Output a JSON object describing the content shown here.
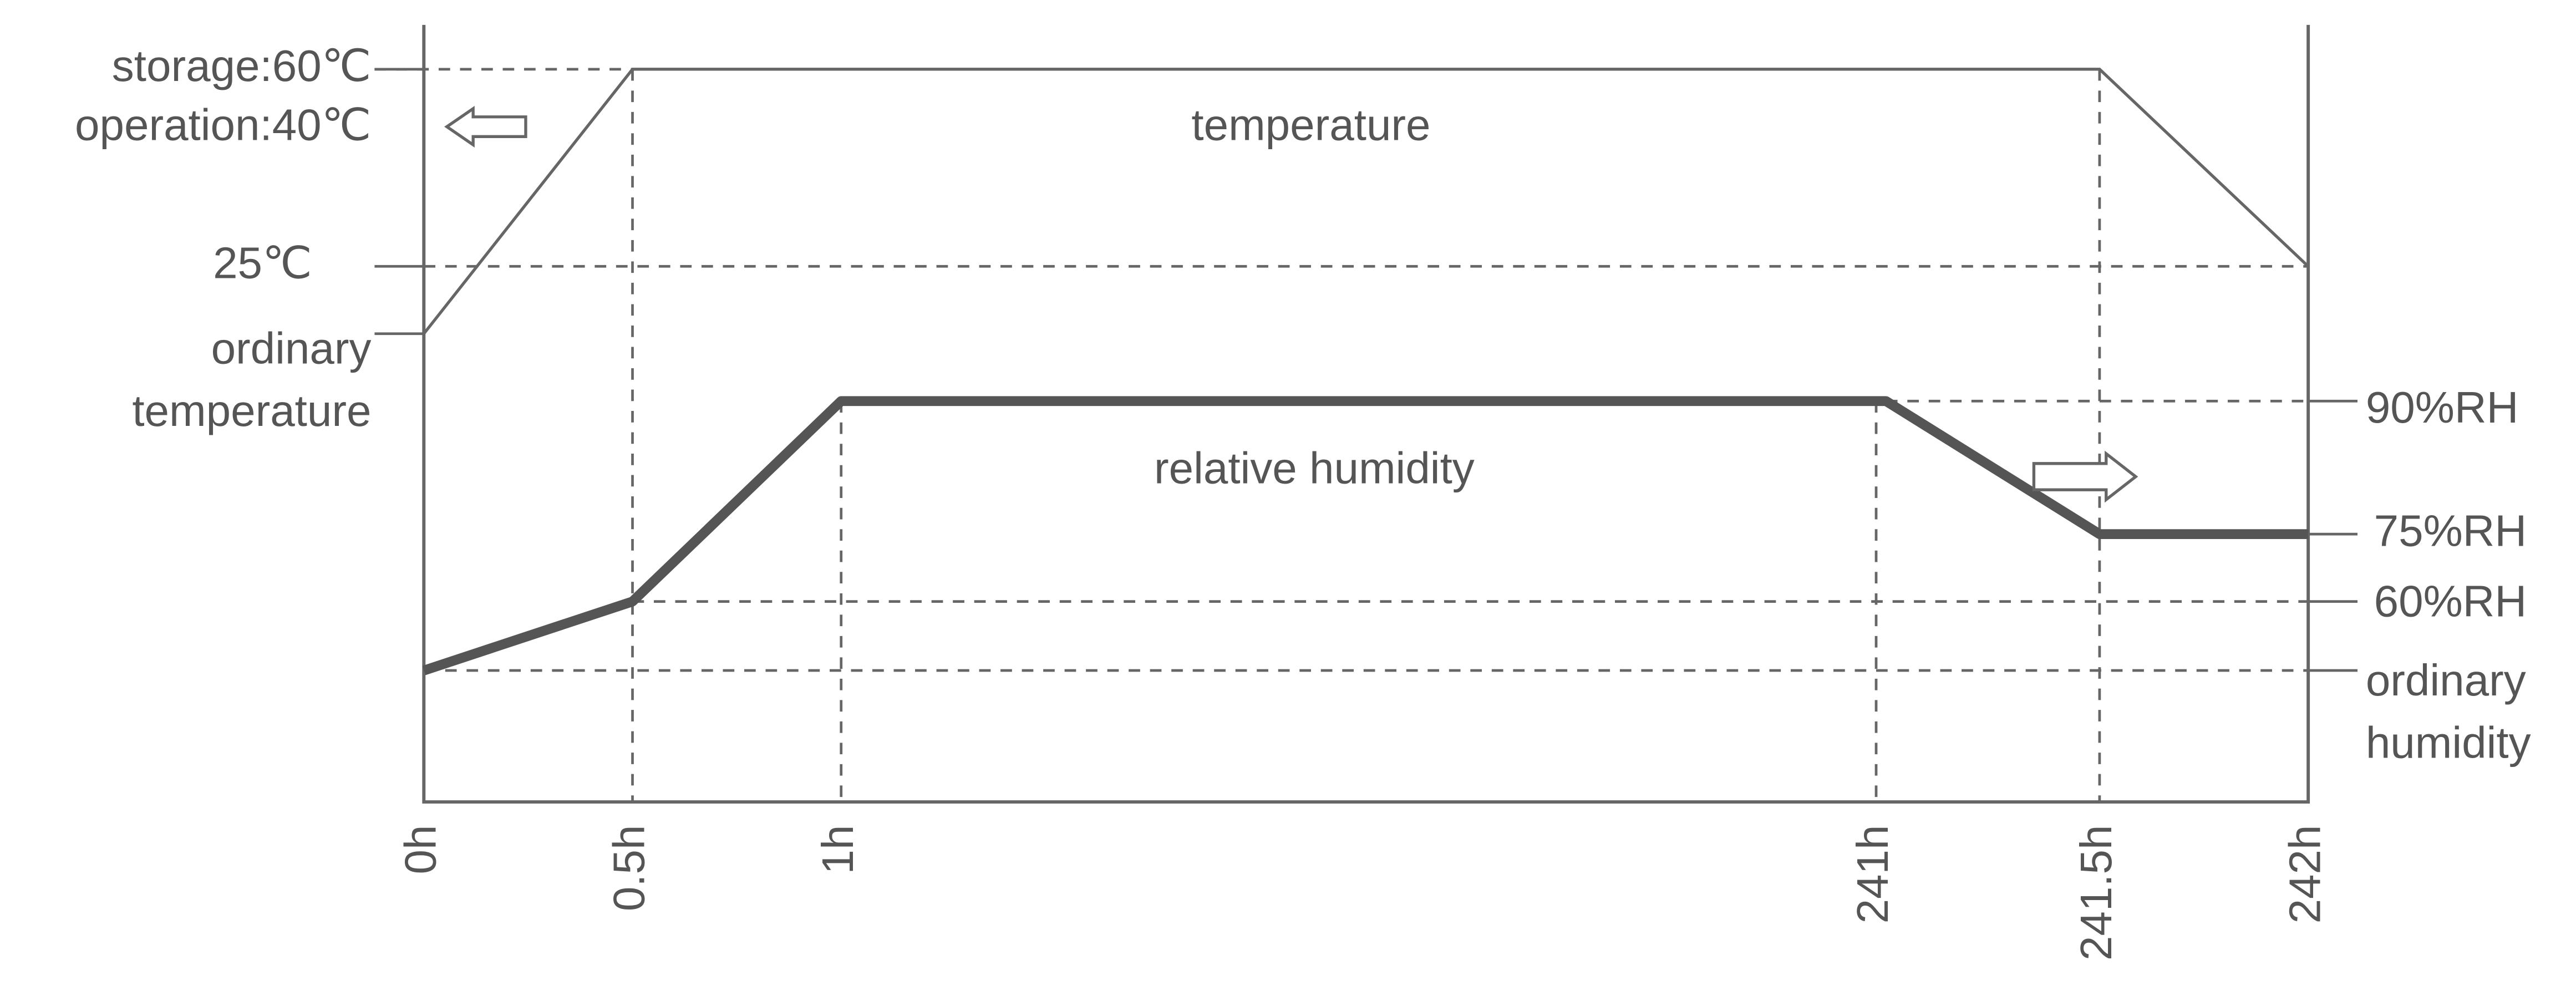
{
  "left_labels": [
    {
      "lines": [
        "storage:60℃"
      ]
    },
    {
      "lines": [
        "operation:40℃"
      ]
    },
    {
      "lines": [
        "25℃"
      ]
    },
    {
      "lines": [
        "ordinary",
        "temperature"
      ]
    }
  ],
  "right_labels": [
    {
      "lines": [
        "90%RH"
      ]
    },
    {
      "lines": [
        "75%RH"
      ]
    },
    {
      "lines": [
        "60%RH"
      ]
    },
    {
      "lines": [
        "ordinary",
        "humidity"
      ]
    }
  ],
  "x_ticks": [
    "0h",
    "0.5h",
    "1h",
    "241h",
    "241.5h",
    "242h"
  ],
  "curve_labels": {
    "temperature": "temperature",
    "humidity": "relative humidity"
  }
}
